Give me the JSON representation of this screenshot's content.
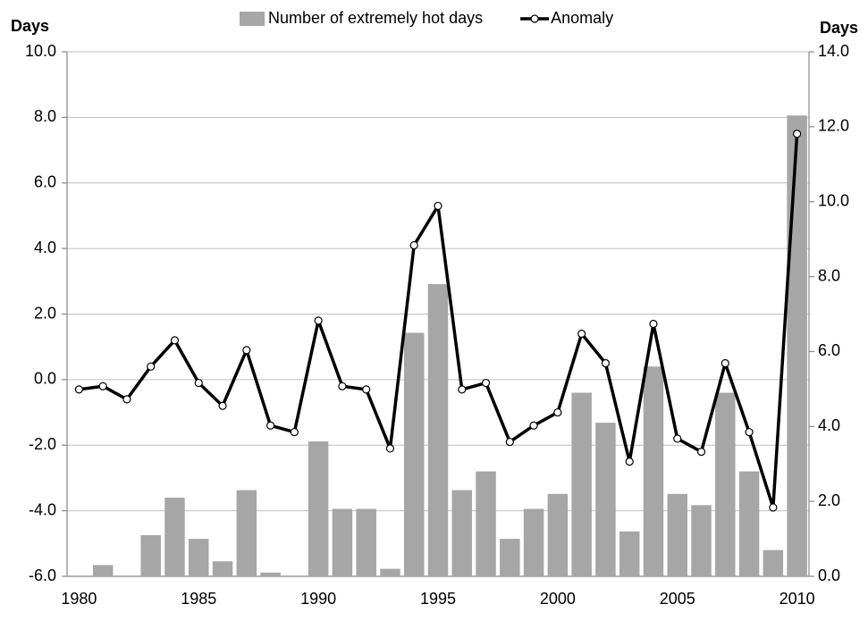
{
  "chart_data": {
    "type": "bar_line",
    "ylabel": "Days",
    "y2label": "Days",
    "categories": [
      "1980",
      null,
      null,
      null,
      null,
      "1985",
      null,
      null,
      null,
      null,
      "1990",
      null,
      null,
      null,
      null,
      "1995",
      null,
      null,
      null,
      null,
      "2000",
      null,
      null,
      null,
      null,
      "2005",
      null,
      null,
      null,
      null,
      "2010"
    ],
    "series": [
      {
        "name": "Number of extremely hot days",
        "type": "bar",
        "axis": "y2",
        "color": "#a6a6a6",
        "values": [
          0,
          0.3,
          0,
          1.1,
          2.1,
          1.0,
          0.4,
          2.3,
          0.1,
          0,
          3.6,
          1.8,
          1.8,
          0.2,
          6.5,
          7.8,
          2.3,
          2.8,
          1.0,
          1.8,
          2.2,
          4.9,
          4.1,
          1.2,
          5.6,
          2.2,
          1.9,
          4.9,
          2.8,
          0.7,
          12.3
        ]
      },
      {
        "name": "Anomaly",
        "type": "line",
        "axis": "y",
        "color": "#000000",
        "values": [
          -0.3,
          -0.2,
          -0.6,
          0.4,
          1.2,
          -0.1,
          -0.8,
          0.9,
          -1.4,
          -1.6,
          1.8,
          -0.2,
          -0.3,
          -2.1,
          4.1,
          5.3,
          -0.3,
          -0.1,
          -1.9,
          -1.4,
          -1.0,
          1.4,
          0.5,
          -2.5,
          1.7,
          -1.8,
          -2.2,
          0.5,
          -1.6,
          -3.9,
          7.5
        ]
      }
    ],
    "ylim": [
      -6,
      10
    ],
    "yticks": [
      {
        "value": -6,
        "label": "-6.0"
      },
      {
        "value": -4,
        "label": "-4.0"
      },
      {
        "value": -2,
        "label": "-2.0"
      },
      {
        "value": 0,
        "label": "0.0"
      },
      {
        "value": 2,
        "label": "2.0"
      },
      {
        "value": 4,
        "label": "4.0"
      },
      {
        "value": 6,
        "label": "6.0"
      },
      {
        "value": 8,
        "label": "8.0"
      },
      {
        "value": 10,
        "label": "10.0"
      }
    ],
    "y2lim": [
      0,
      14
    ],
    "y2ticks": [
      {
        "value": 0,
        "label": "0.0"
      },
      {
        "value": 2,
        "label": "2.0"
      },
      {
        "value": 4,
        "label": "4.0"
      },
      {
        "value": 6,
        "label": "6.0"
      },
      {
        "value": 8,
        "label": "8.0"
      },
      {
        "value": 10,
        "label": "10.0"
      },
      {
        "value": 12,
        "label": "12.0"
      },
      {
        "value": 14,
        "label": "14.0"
      }
    ],
    "grid": true,
    "legend": "top"
  }
}
